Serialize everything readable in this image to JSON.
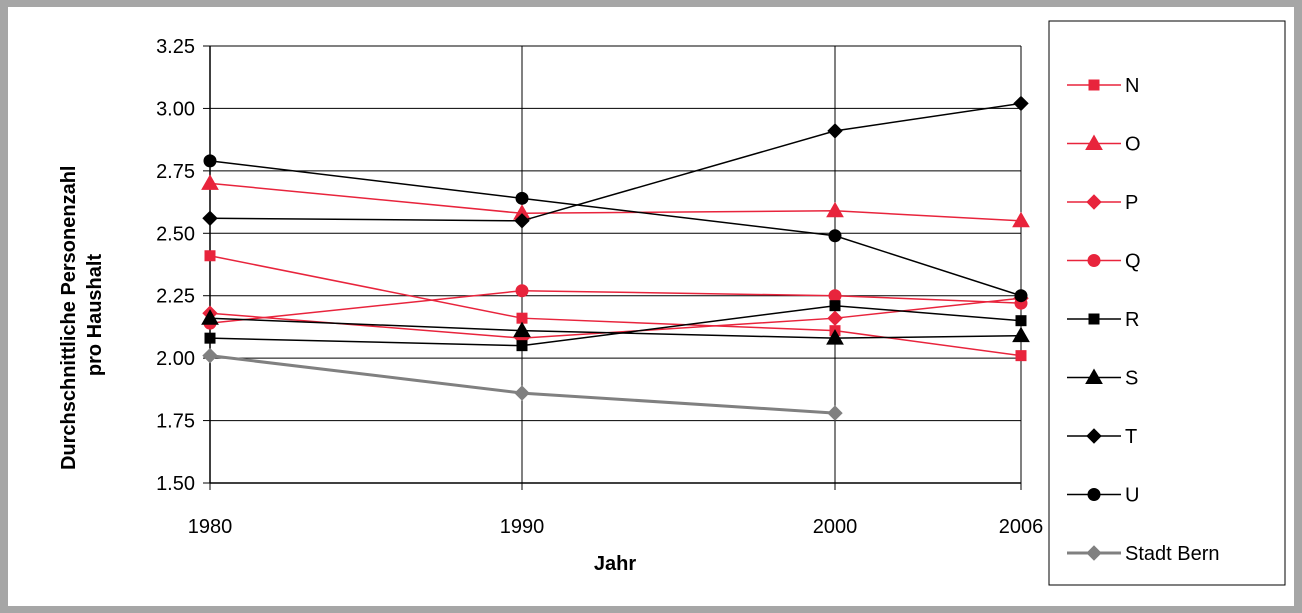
{
  "chart_data": {
    "type": "line",
    "xlabel": "Jahr",
    "ylabel": [
      "Durchschnittliche Personenzahl",
      "pro Haushalt"
    ],
    "x": [
      1980,
      1990,
      2000,
      2006
    ],
    "x_tick_labels": [
      "1980",
      "1990",
      "2000",
      "2006"
    ],
    "ylim": [
      1.5,
      3.25
    ],
    "y_ticks": [
      "1.50",
      "1.75",
      "2.00",
      "2.25",
      "2.50",
      "2.75",
      "3.00",
      "3.25"
    ],
    "grid": true,
    "legend_position": "right",
    "series": [
      {
        "name": "N",
        "color": "#e8243c",
        "marker": "square",
        "values": [
          2.41,
          2.16,
          2.11,
          2.01
        ]
      },
      {
        "name": "O",
        "color": "#e8243c",
        "marker": "triangle",
        "values": [
          2.7,
          2.58,
          2.59,
          2.55
        ]
      },
      {
        "name": "P",
        "color": "#e8243c",
        "marker": "diamond",
        "values": [
          2.18,
          2.08,
          2.16,
          2.24
        ]
      },
      {
        "name": "Q",
        "color": "#e8243c",
        "marker": "circle",
        "values": [
          2.14,
          2.27,
          2.25,
          2.22
        ]
      },
      {
        "name": "R",
        "color": "#000000",
        "marker": "square",
        "values": [
          2.08,
          2.05,
          2.21,
          2.15
        ]
      },
      {
        "name": "S",
        "color": "#000000",
        "marker": "triangle",
        "values": [
          2.16,
          2.11,
          2.08,
          2.09
        ]
      },
      {
        "name": "T",
        "color": "#000000",
        "marker": "diamond",
        "values": [
          2.56,
          2.55,
          2.91,
          3.02
        ]
      },
      {
        "name": "U",
        "color": "#000000",
        "marker": "circle",
        "values": [
          2.79,
          2.64,
          2.49,
          2.25
        ]
      },
      {
        "name": "Stadt Bern",
        "color": "#808080",
        "marker": "diamond",
        "values": [
          2.01,
          1.86,
          1.78,
          null
        ]
      }
    ]
  }
}
